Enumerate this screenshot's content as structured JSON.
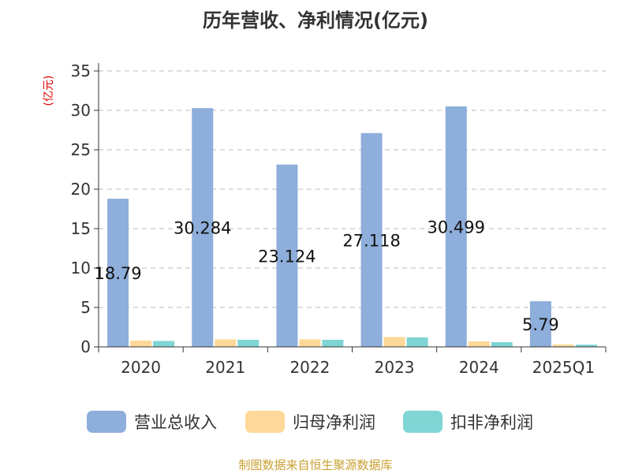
{
  "chart_data": {
    "type": "bar",
    "title": "历年营收、净利情况(亿元)",
    "y_unit": "(亿元)",
    "categories": [
      "2020",
      "2021",
      "2022",
      "2023",
      "2024",
      "2025Q1"
    ],
    "ylim": [
      0,
      35
    ],
    "yticks": [
      "0",
      "5",
      "10",
      "15",
      "20",
      "25",
      "30",
      "35"
    ],
    "grid": true,
    "legend_position": "bottom",
    "series": [
      {
        "name": "营业总收入",
        "color": "#8eaedb",
        "values": [
          18.79,
          30.284,
          23.124,
          27.118,
          30.499,
          5.79
        ]
      },
      {
        "name": "归母净利润",
        "color": "#fdd898",
        "values": [
          0.8,
          0.95,
          0.95,
          1.25,
          0.7,
          0.3
        ]
      },
      {
        "name": "扣非净利润",
        "color": "#7fd4d4",
        "values": [
          0.75,
          0.9,
          0.9,
          1.2,
          0.6,
          0.28
        ]
      }
    ],
    "data_labels": [
      "18.79",
      "30.284",
      "23.124",
      "27.118",
      "30.499",
      "5.79"
    ]
  },
  "source": "制图数据来自恒生聚源数据库"
}
